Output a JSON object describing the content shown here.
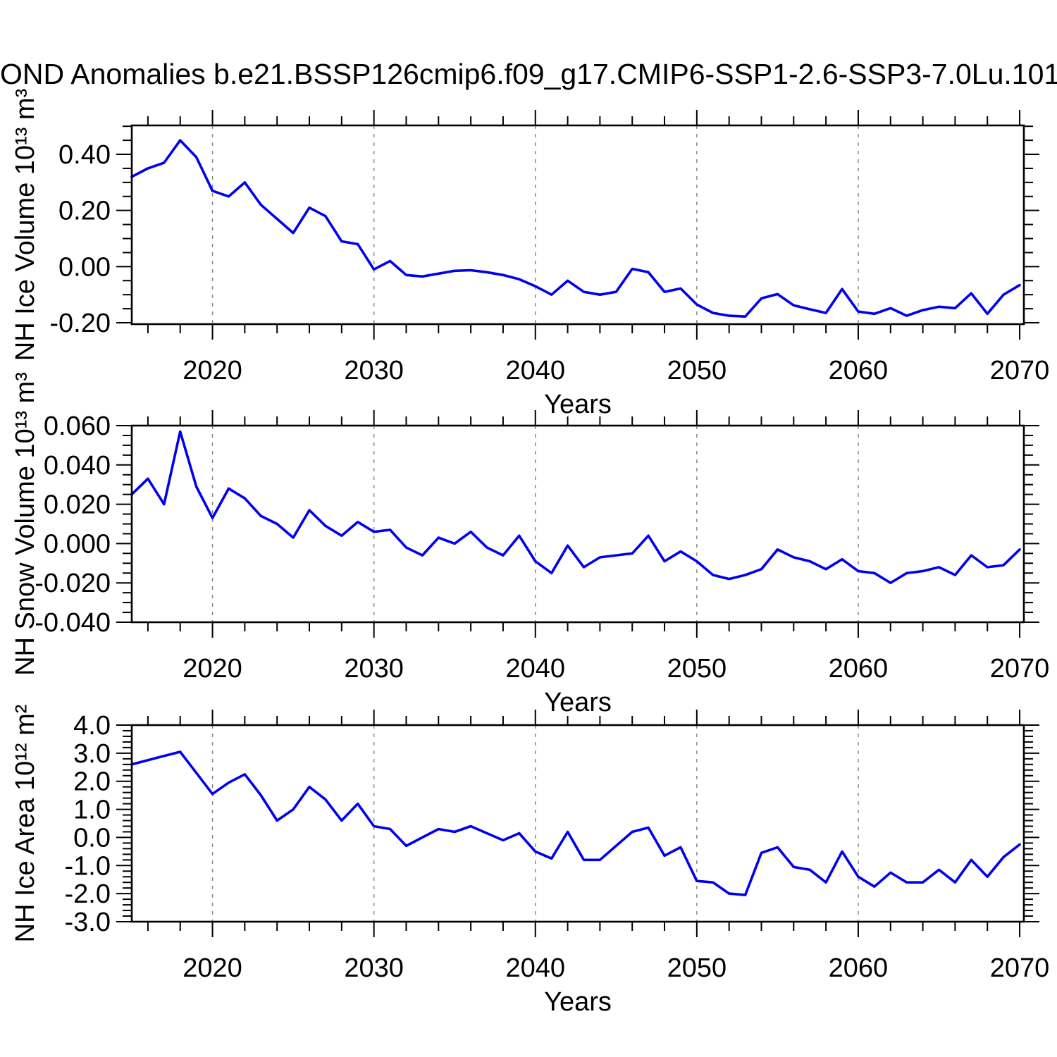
{
  "page": {
    "title": "OND Anomalies b.e21.BSSP126cmip6.f09_g17.CMIP6-SSP1-2.6-SSP3-7.0Lu.101",
    "background": "#ffffff"
  },
  "colors": {
    "line": "#0000ee",
    "axis": "#000000",
    "grid": "#808080",
    "text": "#000000"
  },
  "years": [
    2015,
    2016,
    2017,
    2018,
    2019,
    2020,
    2021,
    2022,
    2023,
    2024,
    2025,
    2026,
    2027,
    2028,
    2029,
    2030,
    2031,
    2032,
    2033,
    2034,
    2035,
    2036,
    2037,
    2038,
    2039,
    2040,
    2041,
    2042,
    2043,
    2044,
    2045,
    2046,
    2047,
    2048,
    2049,
    2050,
    2051,
    2052,
    2053,
    2054,
    2055,
    2056,
    2057,
    2058,
    2059,
    2060,
    2061,
    2062,
    2063,
    2064,
    2065,
    2066,
    2067,
    2068,
    2069,
    2070
  ],
  "chart_data": [
    {
      "type": "line",
      "name": "nh-ice-volume",
      "title": "",
      "ylabel": "NH Ice Volume 10¹³ m³",
      "xlabel": "Years",
      "legend": null,
      "grid": "vertical-dashed",
      "ylim": [
        -0.205,
        0.503
      ],
      "xlim": [
        2015,
        2070.26
      ],
      "yticks": [
        0.4,
        0.2,
        0.0,
        -0.2
      ],
      "ytick_labels": [
        "0.40",
        "0.20",
        "0.00",
        "-0.20"
      ],
      "yminor_step": 0.05,
      "xticks": [
        2020,
        2030,
        2040,
        2050,
        2060,
        2070
      ],
      "xtick_labels": [
        "2020",
        "2030",
        "2040",
        "2050",
        "2060",
        "2070"
      ],
      "xminor_step": 2,
      "grid_years": [
        2020,
        2030,
        2040,
        2050,
        2060
      ],
      "values": [
        0.32,
        0.35,
        0.37,
        0.45,
        0.39,
        0.27,
        0.25,
        0.3,
        0.22,
        0.17,
        0.12,
        0.21,
        0.18,
        0.09,
        0.08,
        -0.01,
        0.02,
        -0.03,
        -0.035,
        -0.025,
        -0.015,
        -0.013,
        -0.02,
        -0.03,
        -0.045,
        -0.07,
        -0.1,
        -0.05,
        -0.09,
        -0.1,
        -0.09,
        -0.008,
        -0.02,
        -0.09,
        -0.078,
        -0.135,
        -0.165,
        -0.175,
        -0.178,
        -0.113,
        -0.098,
        -0.138,
        -0.152,
        -0.165,
        -0.08,
        -0.16,
        -0.168,
        -0.148,
        -0.175,
        -0.155,
        -0.143,
        -0.148,
        -0.095,
        -0.168,
        -0.1,
        -0.066
      ]
    },
    {
      "type": "line",
      "name": "nh-snow-volume",
      "title": "",
      "ylabel": "NH Snow Volume 10¹³ m³",
      "xlabel": "Years",
      "legend": null,
      "grid": "vertical-dashed",
      "ylim": [
        -0.04,
        0.06
      ],
      "xlim": [
        2015,
        2070.26
      ],
      "yticks": [
        0.06,
        0.04,
        0.02,
        0.0,
        -0.02,
        -0.04
      ],
      "ytick_labels": [
        "0.060",
        "0.040",
        "0.020",
        "0.000",
        "-0.020",
        "-0.040"
      ],
      "yminor_step": 0.005,
      "xticks": [
        2020,
        2030,
        2040,
        2050,
        2060,
        2070
      ],
      "xtick_labels": [
        "2020",
        "2030",
        "2040",
        "2050",
        "2060",
        "2070"
      ],
      "xminor_step": 2,
      "grid_years": [
        2020,
        2030,
        2040,
        2050,
        2060
      ],
      "values": [
        0.025,
        0.033,
        0.02,
        0.057,
        0.029,
        0.013,
        0.028,
        0.023,
        0.014,
        0.01,
        0.003,
        0.017,
        0.009,
        0.004,
        0.011,
        0.006,
        0.007,
        -0.002,
        -0.006,
        0.003,
        0.0,
        0.006,
        -0.002,
        -0.006,
        0.004,
        -0.009,
        -0.015,
        -0.001,
        -0.012,
        -0.007,
        -0.006,
        -0.005,
        0.004,
        -0.009,
        -0.004,
        -0.009,
        -0.016,
        -0.018,
        -0.016,
        -0.013,
        -0.003,
        -0.007,
        -0.009,
        -0.013,
        -0.008,
        -0.014,
        -0.015,
        -0.02,
        -0.015,
        -0.014,
        -0.012,
        -0.016,
        -0.006,
        -0.012,
        -0.011,
        -0.003
      ]
    },
    {
      "type": "line",
      "name": "nh-ice-area",
      "title": "",
      "ylabel": "NH Ice Area 10¹² m²",
      "xlabel": "Years",
      "legend": null,
      "grid": "vertical-dashed",
      "ylim": [
        -3.0,
        4.0
      ],
      "xlim": [
        2015,
        2070.26
      ],
      "yticks": [
        4.0,
        3.0,
        2.0,
        1.0,
        0.0,
        -1.0,
        -2.0,
        -3.0
      ],
      "ytick_labels": [
        "4.0",
        "3.0",
        "2.0",
        "1.0",
        "0.0",
        "-1.0",
        "-2.0",
        "-3.0"
      ],
      "yminor_step": 0.2,
      "xticks": [
        2020,
        2030,
        2040,
        2050,
        2060,
        2070
      ],
      "xtick_labels": [
        "2020",
        "2030",
        "2040",
        "2050",
        "2060",
        "2070"
      ],
      "xminor_step": 2,
      "grid_years": [
        2020,
        2030,
        2040,
        2050,
        2060
      ],
      "values": [
        2.6,
        2.75,
        2.9,
        3.05,
        2.3,
        1.55,
        1.95,
        2.25,
        1.5,
        0.6,
        1.0,
        1.8,
        1.35,
        0.6,
        1.2,
        0.4,
        0.3,
        -0.3,
        0.0,
        0.3,
        0.2,
        0.4,
        0.15,
        -0.1,
        0.15,
        -0.5,
        -0.75,
        0.2,
        -0.8,
        -0.8,
        -0.3,
        0.2,
        0.35,
        -0.65,
        -0.35,
        -1.55,
        -1.6,
        -2.0,
        -2.05,
        -0.55,
        -0.35,
        -1.05,
        -1.15,
        -1.6,
        -0.5,
        -1.4,
        -1.75,
        -1.25,
        -1.6,
        -1.6,
        -1.15,
        -1.6,
        -0.8,
        -1.4,
        -0.7,
        -0.25
      ]
    }
  ]
}
